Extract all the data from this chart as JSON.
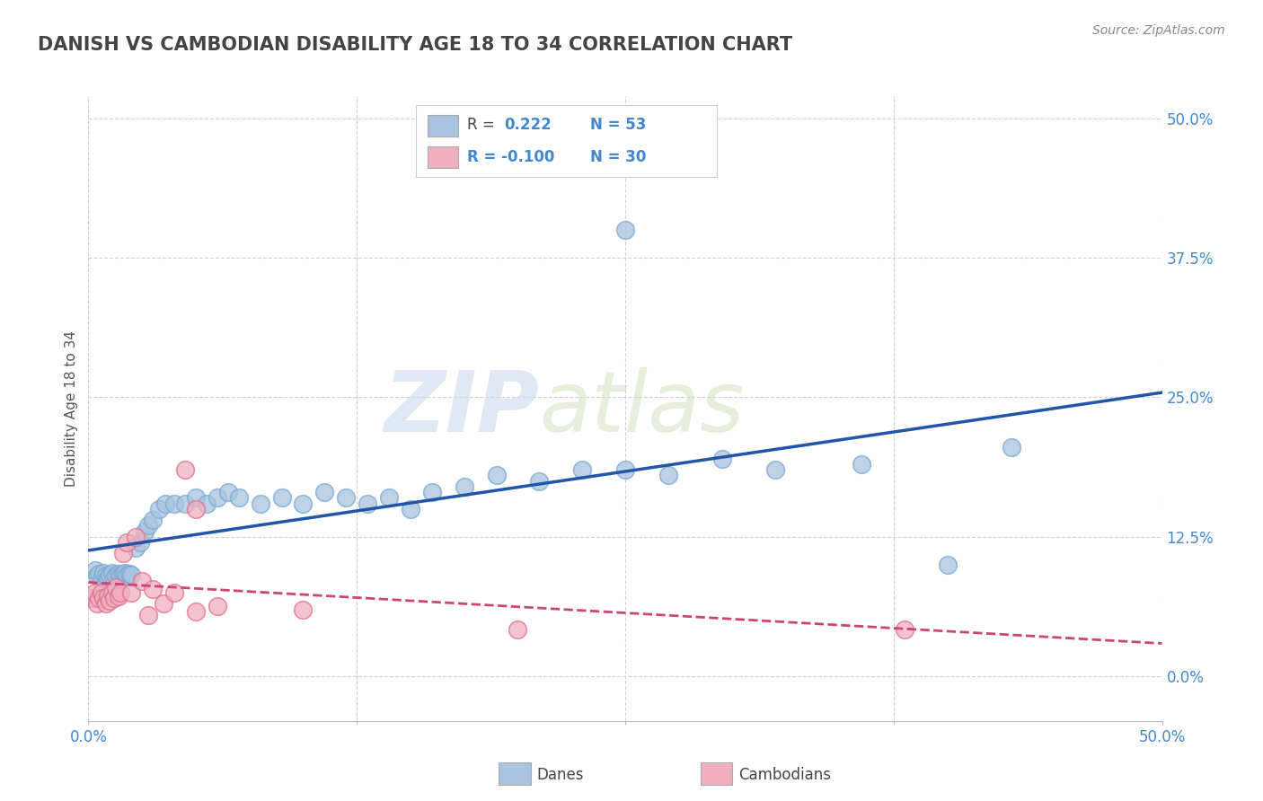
{
  "title": "DANISH VS CAMBODIAN DISABILITY AGE 18 TO 34 CORRELATION CHART",
  "source_text": "Source: ZipAtlas.com",
  "ylabel": "Disability Age 18 to 34",
  "xlim": [
    0.0,
    0.5
  ],
  "ylim": [
    -0.04,
    0.52
  ],
  "ytick_values": [
    0.0,
    0.125,
    0.25,
    0.375,
    0.5
  ],
  "xtick_values": [
    0.0,
    0.125,
    0.25,
    0.375,
    0.5
  ],
  "xtick_labels": [
    "0.0%",
    "",
    "",
    "",
    "50.0%"
  ],
  "danes_R": 0.222,
  "danes_N": 53,
  "cambodians_R": -0.1,
  "cambodians_N": 30,
  "danes_color": "#a8c4e0",
  "danes_edge_color": "#7aaace",
  "danes_line_color": "#2255aa",
  "cambodians_color": "#f0b0c0",
  "cambodians_edge_color": "#e07090",
  "cambodians_line_color": "#cc4477",
  "danes_scatter_x": [
    0.003,
    0.004,
    0.005,
    0.006,
    0.007,
    0.008,
    0.009,
    0.01,
    0.011,
    0.012,
    0.013,
    0.014,
    0.015,
    0.016,
    0.017,
    0.018,
    0.019,
    0.02,
    0.022,
    0.024,
    0.026,
    0.028,
    0.03,
    0.033,
    0.036,
    0.04,
    0.045,
    0.05,
    0.055,
    0.06,
    0.065,
    0.07,
    0.08,
    0.09,
    0.1,
    0.11,
    0.12,
    0.13,
    0.14,
    0.15,
    0.16,
    0.175,
    0.19,
    0.21,
    0.23,
    0.25,
    0.27,
    0.295,
    0.32,
    0.36,
    0.4,
    0.43,
    0.25
  ],
  "danes_scatter_y": [
    0.095,
    0.09,
    0.092,
    0.088,
    0.093,
    0.09,
    0.088,
    0.091,
    0.093,
    0.088,
    0.09,
    0.092,
    0.09,
    0.092,
    0.093,
    0.09,
    0.092,
    0.091,
    0.115,
    0.12,
    0.13,
    0.135,
    0.14,
    0.15,
    0.155,
    0.155,
    0.155,
    0.16,
    0.155,
    0.16,
    0.165,
    0.16,
    0.155,
    0.16,
    0.155,
    0.165,
    0.16,
    0.155,
    0.16,
    0.15,
    0.165,
    0.17,
    0.18,
    0.175,
    0.185,
    0.185,
    0.18,
    0.195,
    0.185,
    0.19,
    0.1,
    0.205,
    0.4
  ],
  "cambodians_scatter_x": [
    0.002,
    0.003,
    0.004,
    0.005,
    0.006,
    0.007,
    0.008,
    0.009,
    0.01,
    0.011,
    0.012,
    0.013,
    0.014,
    0.015,
    0.016,
    0.018,
    0.02,
    0.022,
    0.025,
    0.028,
    0.03,
    0.035,
    0.04,
    0.045,
    0.05,
    0.06,
    0.1,
    0.2,
    0.38,
    0.05
  ],
  "cambodians_scatter_y": [
    0.07,
    0.075,
    0.065,
    0.07,
    0.075,
    0.07,
    0.065,
    0.072,
    0.068,
    0.075,
    0.07,
    0.08,
    0.072,
    0.075,
    0.11,
    0.12,
    0.075,
    0.125,
    0.085,
    0.055,
    0.078,
    0.065,
    0.075,
    0.185,
    0.058,
    0.063,
    0.06,
    0.042,
    0.042,
    0.15
  ],
  "watermark_zip": "ZIP",
  "watermark_atlas": "atlas",
  "background_color": "#ffffff",
  "grid_color": "#cccccc",
  "title_color": "#444444",
  "axis_color": "#4488cc",
  "legend_text_color": "#4488cc"
}
